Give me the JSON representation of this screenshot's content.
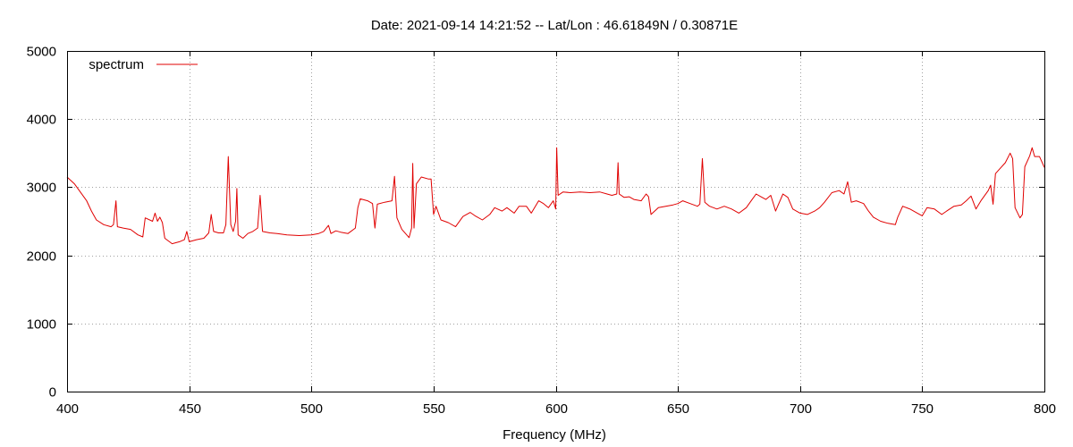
{
  "chart_data": {
    "type": "line",
    "title": "Date: 2021-09-14 14:21:52  --  Lat/Lon : 46.61849N / 0.30871E",
    "xlabel": "Frequency (MHz)",
    "ylabel": "",
    "xlim": [
      400,
      800
    ],
    "ylim": [
      0,
      5000
    ],
    "xticks": [
      400,
      450,
      500,
      550,
      600,
      650,
      700,
      750,
      800
    ],
    "yticks": [
      0,
      1000,
      2000,
      3000,
      4000,
      5000
    ],
    "grid": true,
    "legend": "top-left",
    "series": [
      {
        "name": "spectrum",
        "color": "#e00000",
        "points": [
          [
            400,
            3150
          ],
          [
            403,
            3050
          ],
          [
            405,
            2950
          ],
          [
            408,
            2800
          ],
          [
            410,
            2650
          ],
          [
            412,
            2520
          ],
          [
            415,
            2450
          ],
          [
            418,
            2420
          ],
          [
            419,
            2450
          ],
          [
            420,
            2800
          ],
          [
            420.6,
            2420
          ],
          [
            423,
            2400
          ],
          [
            426,
            2380
          ],
          [
            429,
            2300
          ],
          [
            431,
            2270
          ],
          [
            432,
            2550
          ],
          [
            435,
            2500
          ],
          [
            436,
            2620
          ],
          [
            437,
            2500
          ],
          [
            438,
            2560
          ],
          [
            439,
            2480
          ],
          [
            440,
            2250
          ],
          [
            443,
            2170
          ],
          [
            446,
            2200
          ],
          [
            448,
            2230
          ],
          [
            449,
            2350
          ],
          [
            450,
            2200
          ],
          [
            453,
            2230
          ],
          [
            456,
            2250
          ],
          [
            458,
            2330
          ],
          [
            459,
            2600
          ],
          [
            460,
            2350
          ],
          [
            462,
            2330
          ],
          [
            464,
            2330
          ],
          [
            465,
            2450
          ],
          [
            466,
            3450
          ],
          [
            467,
            2450
          ],
          [
            468,
            2350
          ],
          [
            469,
            2500
          ],
          [
            469.5,
            2980
          ],
          [
            470,
            2300
          ],
          [
            472,
            2250
          ],
          [
            474,
            2320
          ],
          [
            476,
            2350
          ],
          [
            478,
            2400
          ],
          [
            479,
            2880
          ],
          [
            480,
            2350
          ],
          [
            483,
            2330
          ],
          [
            486,
            2320
          ],
          [
            490,
            2300
          ],
          [
            495,
            2290
          ],
          [
            500,
            2300
          ],
          [
            503,
            2320
          ],
          [
            505,
            2350
          ],
          [
            507,
            2440
          ],
          [
            508,
            2320
          ],
          [
            510,
            2360
          ],
          [
            512,
            2340
          ],
          [
            515,
            2320
          ],
          [
            518,
            2400
          ],
          [
            519,
            2700
          ],
          [
            520,
            2830
          ],
          [
            523,
            2800
          ],
          [
            525,
            2760
          ],
          [
            526,
            2400
          ],
          [
            527,
            2750
          ],
          [
            530,
            2780
          ],
          [
            533,
            2800
          ],
          [
            534,
            3160
          ],
          [
            535,
            2550
          ],
          [
            537,
            2380
          ],
          [
            539,
            2300
          ],
          [
            540,
            2260
          ],
          [
            541,
            2400
          ],
          [
            541.5,
            3350
          ],
          [
            542,
            2400
          ],
          [
            543,
            3050
          ],
          [
            545,
            3150
          ],
          [
            548,
            3120
          ],
          [
            549,
            3120
          ],
          [
            550,
            2600
          ],
          [
            551,
            2720
          ],
          [
            553,
            2520
          ],
          [
            556,
            2480
          ],
          [
            559,
            2420
          ],
          [
            562,
            2570
          ],
          [
            565,
            2630
          ],
          [
            567,
            2580
          ],
          [
            570,
            2520
          ],
          [
            573,
            2600
          ],
          [
            575,
            2700
          ],
          [
            578,
            2650
          ],
          [
            580,
            2700
          ],
          [
            583,
            2620
          ],
          [
            585,
            2720
          ],
          [
            588,
            2720
          ],
          [
            590,
            2620
          ],
          [
            593,
            2800
          ],
          [
            595,
            2760
          ],
          [
            597,
            2700
          ],
          [
            599,
            2800
          ],
          [
            600,
            2680
          ],
          [
            600.4,
            3580
          ],
          [
            601,
            2880
          ],
          [
            603,
            2930
          ],
          [
            606,
            2920
          ],
          [
            610,
            2930
          ],
          [
            614,
            2920
          ],
          [
            618,
            2930
          ],
          [
            621,
            2900
          ],
          [
            623,
            2880
          ],
          [
            625,
            2900
          ],
          [
            625.5,
            3360
          ],
          [
            626,
            2900
          ],
          [
            628,
            2850
          ],
          [
            630,
            2860
          ],
          [
            632,
            2820
          ],
          [
            635,
            2800
          ],
          [
            637,
            2900
          ],
          [
            638,
            2860
          ],
          [
            639,
            2600
          ],
          [
            642,
            2700
          ],
          [
            645,
            2720
          ],
          [
            648,
            2740
          ],
          [
            650,
            2760
          ],
          [
            652,
            2800
          ],
          [
            655,
            2760
          ],
          [
            658,
            2720
          ],
          [
            659,
            2750
          ],
          [
            660,
            3420
          ],
          [
            661,
            2780
          ],
          [
            663,
            2720
          ],
          [
            666,
            2680
          ],
          [
            669,
            2720
          ],
          [
            672,
            2680
          ],
          [
            675,
            2620
          ],
          [
            678,
            2700
          ],
          [
            680,
            2800
          ],
          [
            682,
            2900
          ],
          [
            684,
            2860
          ],
          [
            686,
            2820
          ],
          [
            688,
            2880
          ],
          [
            690,
            2650
          ],
          [
            693,
            2900
          ],
          [
            695,
            2850
          ],
          [
            697,
            2680
          ],
          [
            700,
            2620
          ],
          [
            703,
            2600
          ],
          [
            706,
            2650
          ],
          [
            708,
            2700
          ],
          [
            710,
            2780
          ],
          [
            713,
            2920
          ],
          [
            716,
            2950
          ],
          [
            718,
            2900
          ],
          [
            719.5,
            3080
          ],
          [
            721,
            2780
          ],
          [
            723,
            2800
          ],
          [
            726,
            2760
          ],
          [
            728,
            2650
          ],
          [
            730,
            2560
          ],
          [
            733,
            2500
          ],
          [
            736,
            2470
          ],
          [
            739,
            2450
          ],
          [
            740,
            2560
          ],
          [
            742,
            2720
          ],
          [
            745,
            2680
          ],
          [
            748,
            2620
          ],
          [
            750,
            2580
          ],
          [
            752,
            2700
          ],
          [
            755,
            2680
          ],
          [
            758,
            2600
          ],
          [
            760,
            2650
          ],
          [
            763,
            2720
          ],
          [
            766,
            2740
          ],
          [
            768,
            2800
          ],
          [
            770,
            2870
          ],
          [
            772,
            2680
          ],
          [
            774,
            2800
          ],
          [
            777,
            2950
          ],
          [
            778,
            3030
          ],
          [
            779,
            2750
          ],
          [
            780,
            3200
          ],
          [
            782,
            3280
          ],
          [
            784,
            3360
          ],
          [
            786,
            3500
          ],
          [
            787,
            3420
          ],
          [
            788,
            2700
          ],
          [
            790,
            2550
          ],
          [
            791,
            2600
          ],
          [
            792,
            3300
          ],
          [
            794,
            3460
          ],
          [
            795,
            3580
          ],
          [
            796,
            3450
          ],
          [
            798,
            3450
          ],
          [
            800,
            3290
          ]
        ]
      }
    ]
  }
}
